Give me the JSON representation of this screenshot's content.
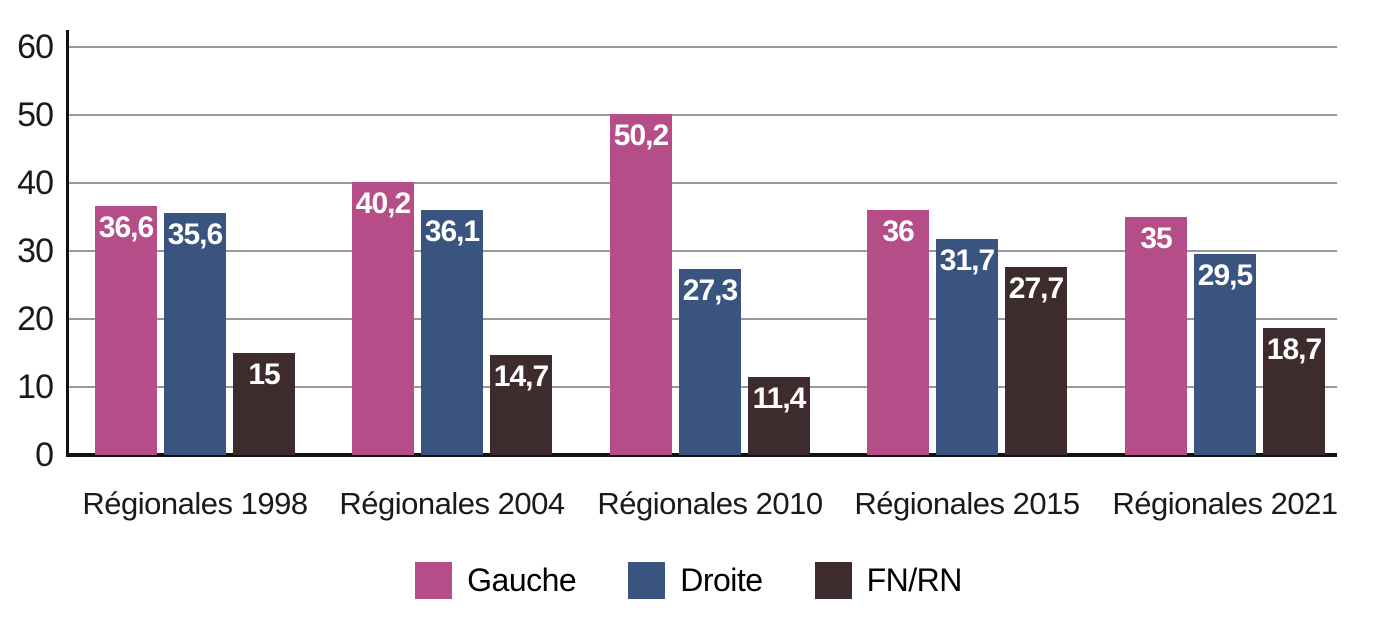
{
  "chart_data": {
    "type": "bar",
    "title": "",
    "xlabel": "",
    "ylabel": "",
    "categories": [
      "Régionales 1998",
      "Régionales 2004",
      "Régionales 2010",
      "Régionales 2015",
      "Régionales 2021"
    ],
    "series": [
      {
        "name": "Gauche",
        "color": "#b54d88",
        "values": [
          36.6,
          40.2,
          50.2,
          36,
          35
        ],
        "value_labels": [
          "36,6",
          "40,2",
          "50,2",
          "36",
          "35"
        ]
      },
      {
        "name": "Droite",
        "color": "#38547f",
        "values": [
          35.6,
          36.1,
          27.3,
          31.7,
          29.5
        ],
        "value_labels": [
          "35,6",
          "36,1",
          "27,3",
          "31,7",
          "29,5"
        ]
      },
      {
        "name": "FN/RN",
        "color": "#3e2b2d",
        "values": [
          15,
          14.7,
          11.4,
          27.7,
          18.7
        ],
        "value_labels": [
          "15",
          "14,7",
          "11,4",
          "27,7",
          "18,7"
        ]
      }
    ],
    "ylim": [
      0,
      60
    ],
    "yticks": [
      0,
      10,
      20,
      30,
      40,
      50,
      60
    ],
    "grid": true,
    "legend_position": "bottom"
  },
  "colors": {
    "background": "#ffffff",
    "gridline": "#989898",
    "axis": "#111111",
    "tick_text": "#1a1a1a",
    "category_text": "#1a1a1a",
    "value_label_text": "#ffffff"
  }
}
